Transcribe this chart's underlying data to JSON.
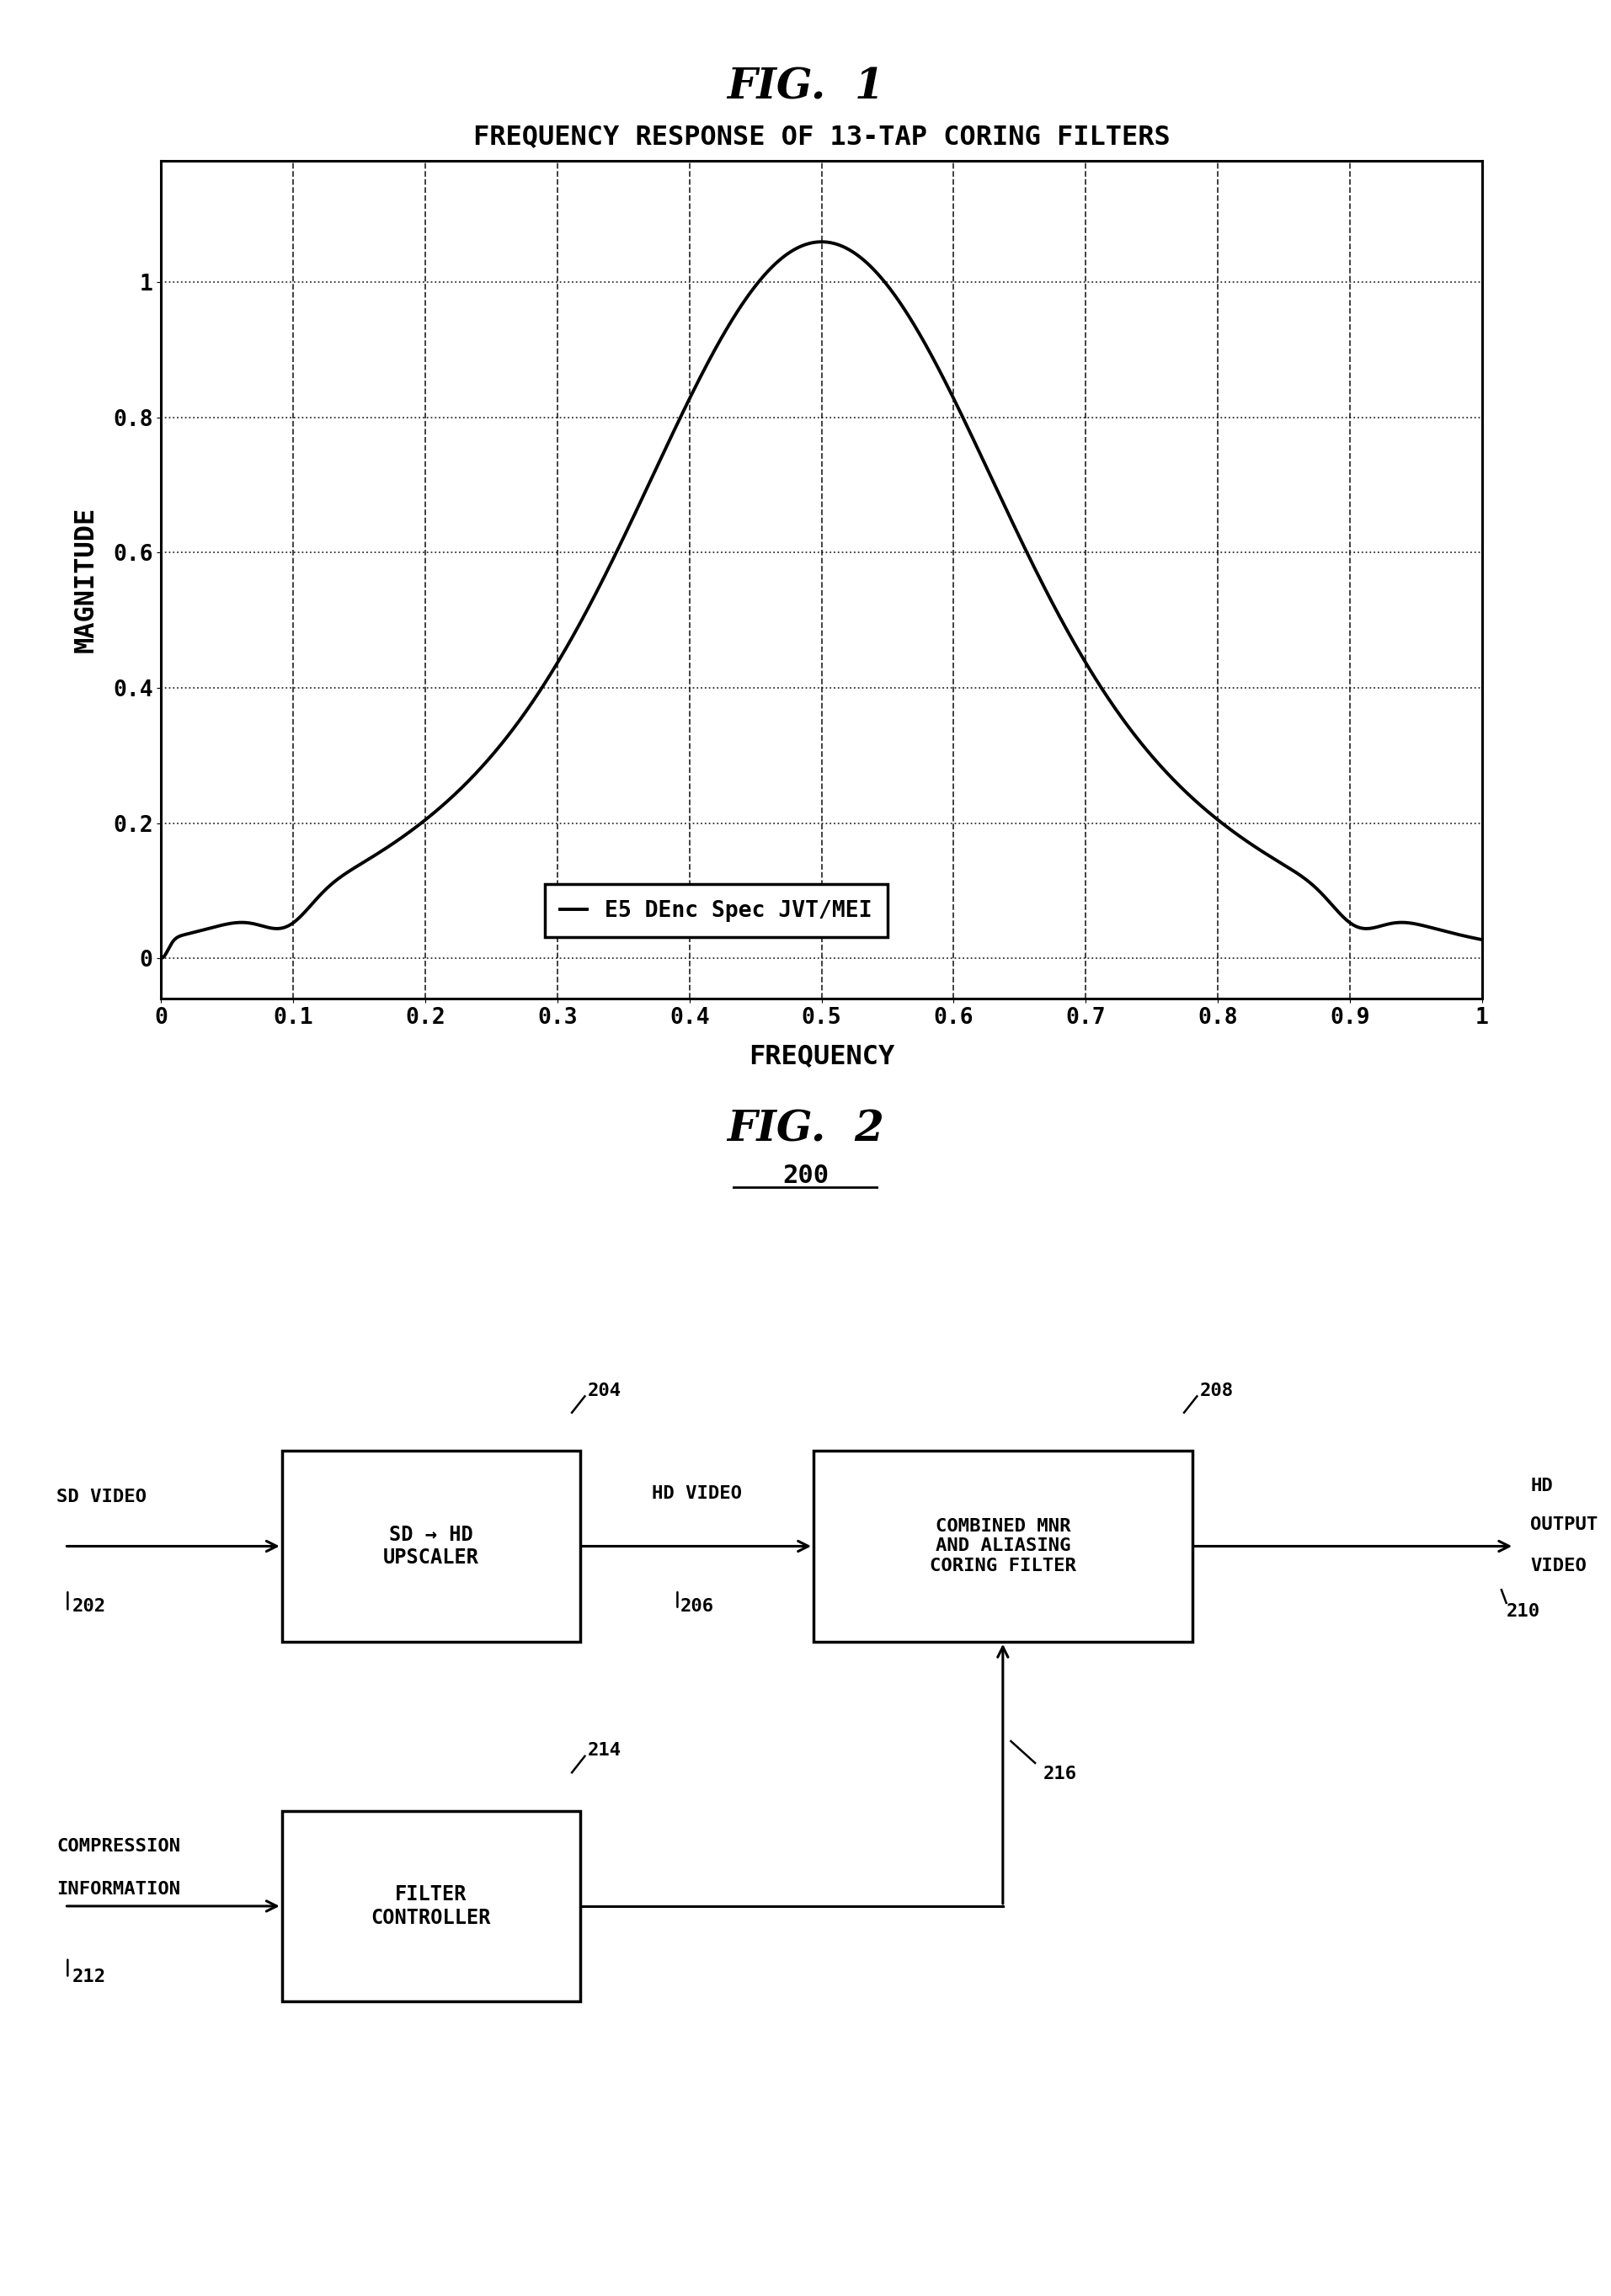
{
  "fig1_title": "FIG.  1",
  "fig1_subtitle": "FREQUENCY RESPONSE OF 13-TAP CORING FILTERS",
  "xlabel": "FREQUENCY",
  "ylabel": "MAGNITUDE",
  "yticks": [
    0,
    0.2,
    0.4,
    0.6,
    0.8,
    1
  ],
  "xtick_vals": [
    0,
    0.1,
    0.2,
    0.3,
    0.4,
    0.5,
    0.6,
    0.7,
    0.8,
    0.9,
    1
  ],
  "xtick_labels": [
    "0",
    "0.1",
    "0.2",
    "0.3",
    "0.4",
    "0.5",
    "0.6",
    "0.7",
    "0.8",
    "0.9",
    "1"
  ],
  "ytick_labels": [
    "0",
    "0.2",
    "0.4",
    "0.6",
    "0.8",
    "1"
  ],
  "legend_label": "E5 DEnc Spec JVT/MEI",
  "fig2_title": "FIG.  2",
  "fig2_number": "200",
  "line_color": "#000000",
  "bg_color": "#ffffff"
}
